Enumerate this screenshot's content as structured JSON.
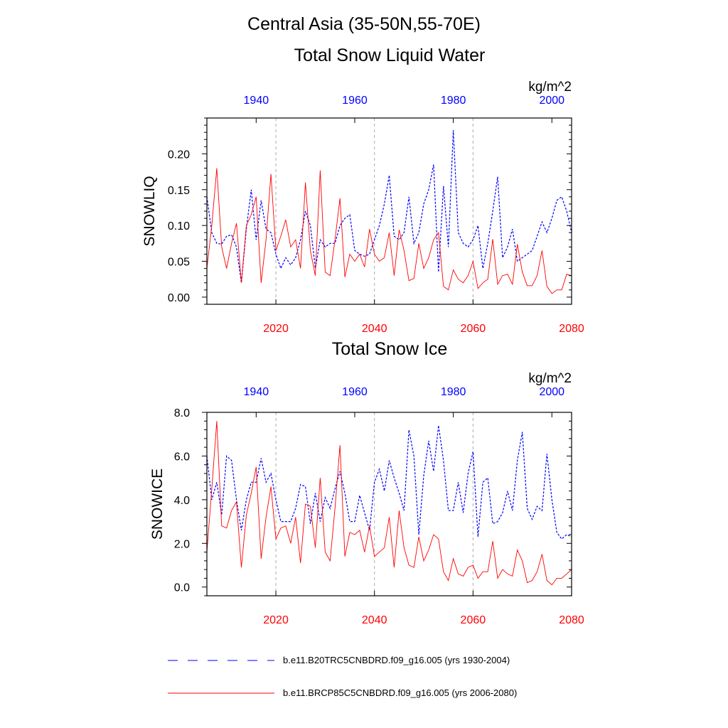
{
  "figure": {
    "title": "Central Asia (35-50N,55-70E)",
    "colors": {
      "historical": "#0000ff",
      "future": "#ff0000",
      "grid": "#aaaaaa",
      "axis": "#000000"
    }
  },
  "chart_data": [
    {
      "type": "line",
      "title": "Total Snow Liquid Water",
      "units": "kg/m^2",
      "ylabel": "SNOWLIQ",
      "ylim": [
        -0.01,
        0.25
      ],
      "yticks": [
        0.0,
        0.05,
        0.1,
        0.15,
        0.2
      ],
      "ytick_labels": [
        "0.00",
        "0.05",
        "0.10",
        "0.15",
        "0.20"
      ],
      "bottom_axis": {
        "range": [
          2006,
          2080
        ],
        "ticks": [
          2020,
          2040,
          2060,
          2080
        ],
        "tick_labels": [
          "2020",
          "2040",
          "2060",
          "2080"
        ],
        "color": "#ff0000"
      },
      "top_axis": {
        "range": [
          1930,
          2004
        ],
        "ticks": [
          1940,
          1960,
          1980,
          2000
        ],
        "tick_labels": [
          "1940",
          "1960",
          "1980",
          "2000"
        ],
        "color": "#0000ff"
      },
      "grid": "vertical dashed at 2020, 2040, 2060",
      "series": [
        {
          "name": "b.e11.B20TRC5CNBDRD.f09_g16.005 (yrs 1930-2004)",
          "axis": "top",
          "style": "dashed",
          "color": "#0000ff",
          "x": [
            1930,
            1931,
            1932,
            1933,
            1934,
            1935,
            1936,
            1937,
            1938,
            1939,
            1940,
            1941,
            1942,
            1943,
            1944,
            1945,
            1946,
            1947,
            1948,
            1949,
            1950,
            1951,
            1952,
            1953,
            1954,
            1955,
            1956,
            1957,
            1958,
            1959,
            1960,
            1961,
            1962,
            1963,
            1964,
            1965,
            1966,
            1967,
            1968,
            1969,
            1970,
            1971,
            1972,
            1973,
            1974,
            1975,
            1976,
            1977,
            1978,
            1979,
            1980,
            1981,
            1982,
            1983,
            1984,
            1985,
            1986,
            1987,
            1988,
            1989,
            1990,
            1991,
            1992,
            1993,
            1994,
            1995,
            1996,
            1997,
            1998,
            1999,
            2000,
            2001,
            2002,
            2003,
            2004
          ],
          "values": [
            0.14,
            0.09,
            0.075,
            0.074,
            0.085,
            0.087,
            0.07,
            0.02,
            0.095,
            0.15,
            0.08,
            0.135,
            0.095,
            0.09,
            0.06,
            0.04,
            0.055,
            0.045,
            0.055,
            0.08,
            0.12,
            0.1,
            0.04,
            0.08,
            0.07,
            0.075,
            0.075,
            0.1,
            0.11,
            0.115,
            0.065,
            0.06,
            0.057,
            0.06,
            0.08,
            0.1,
            0.13,
            0.17,
            0.085,
            0.08,
            0.09,
            0.14,
            0.075,
            0.09,
            0.13,
            0.15,
            0.185,
            0.035,
            0.155,
            0.07,
            0.233,
            0.09,
            0.075,
            0.07,
            0.08,
            0.1,
            0.04,
            0.075,
            0.12,
            0.168,
            0.055,
            0.07,
            0.095,
            0.05,
            0.055,
            0.06,
            0.065,
            0.085,
            0.105,
            0.09,
            0.11,
            0.135,
            0.14,
            0.12,
            0.09
          ]
        },
        {
          "name": "b.e11.BRCP85C5CNBDRD.f09_g16.005 (yrs 2006-2080)",
          "axis": "bottom",
          "style": "solid",
          "color": "#ff0000",
          "x": [
            2006,
            2007,
            2008,
            2009,
            2010,
            2011,
            2012,
            2013,
            2014,
            2015,
            2016,
            2017,
            2018,
            2019,
            2020,
            2021,
            2022,
            2023,
            2024,
            2025,
            2026,
            2027,
            2028,
            2029,
            2030,
            2031,
            2032,
            2033,
            2034,
            2035,
            2036,
            2037,
            2038,
            2039,
            2040,
            2041,
            2042,
            2043,
            2044,
            2045,
            2046,
            2047,
            2048,
            2049,
            2050,
            2051,
            2052,
            2053,
            2054,
            2055,
            2056,
            2057,
            2058,
            2059,
            2060,
            2061,
            2062,
            2063,
            2064,
            2065,
            2066,
            2067,
            2068,
            2069,
            2070,
            2071,
            2072,
            2073,
            2074,
            2075,
            2076,
            2077,
            2078,
            2079,
            2080
          ],
          "values": [
            0.04,
            0.1,
            0.18,
            0.07,
            0.04,
            0.075,
            0.103,
            0.02,
            0.1,
            0.115,
            0.14,
            0.02,
            0.08,
            0.172,
            0.065,
            0.085,
            0.108,
            0.07,
            0.08,
            0.04,
            0.16,
            0.065,
            0.03,
            0.177,
            0.035,
            0.03,
            0.08,
            0.138,
            0.028,
            0.06,
            0.05,
            0.06,
            0.042,
            0.095,
            0.06,
            0.05,
            0.055,
            0.09,
            0.03,
            0.094,
            0.065,
            0.023,
            0.026,
            0.075,
            0.04,
            0.055,
            0.08,
            0.09,
            0.015,
            0.01,
            0.038,
            0.025,
            0.02,
            0.03,
            0.05,
            0.012,
            0.02,
            0.025,
            0.081,
            0.018,
            0.03,
            0.032,
            0.018,
            0.074,
            0.035,
            0.016,
            0.016,
            0.03,
            0.065,
            0.015,
            0.005,
            0.01,
            0.01,
            0.032,
            0.03
          ]
        }
      ]
    },
    {
      "type": "line",
      "title": "Total Snow Ice",
      "units": "kg/m^2",
      "ylabel": "SNOWICE",
      "ylim": [
        -0.4,
        8.0
      ],
      "yticks": [
        0,
        2,
        4,
        6,
        8
      ],
      "ytick_labels": [
        "0.0",
        "2.0",
        "4.0",
        "6.0",
        "8.0"
      ],
      "bottom_axis": {
        "range": [
          2006,
          2080
        ],
        "ticks": [
          2020,
          2040,
          2060,
          2080
        ],
        "tick_labels": [
          "2020",
          "2040",
          "2060",
          "2080"
        ],
        "color": "#ff0000"
      },
      "top_axis": {
        "range": [
          1930,
          2004
        ],
        "ticks": [
          1940,
          1960,
          1980,
          2000
        ],
        "tick_labels": [
          "1940",
          "1960",
          "1980",
          "2000"
        ],
        "color": "#0000ff"
      },
      "grid": "vertical dashed at 2020, 2040, 2060",
      "series": [
        {
          "name": "b.e11.B20TRC5CNBDRD.f09_g16.005 (yrs 1930-2004)",
          "axis": "top",
          "style": "dashed",
          "color": "#0000ff",
          "x": [
            1930,
            1931,
            1932,
            1933,
            1934,
            1935,
            1936,
            1937,
            1938,
            1939,
            1940,
            1941,
            1942,
            1943,
            1944,
            1945,
            1946,
            1947,
            1948,
            1949,
            1950,
            1951,
            1952,
            1953,
            1954,
            1955,
            1956,
            1957,
            1958,
            1959,
            1960,
            1961,
            1962,
            1963,
            1964,
            1965,
            1966,
            1967,
            1968,
            1969,
            1970,
            1971,
            1972,
            1973,
            1974,
            1975,
            1976,
            1977,
            1978,
            1979,
            1980,
            1981,
            1982,
            1983,
            1984,
            1985,
            1986,
            1987,
            1988,
            1989,
            1990,
            1991,
            1992,
            1993,
            1994,
            1995,
            1996,
            1997,
            1998,
            1999,
            2000,
            2001,
            2002,
            2003,
            2004
          ],
          "values": [
            6.0,
            4.0,
            4.8,
            3.3,
            6.0,
            5.8,
            4.0,
            2.6,
            4.0,
            4.8,
            4.8,
            5.9,
            4.8,
            5.2,
            4.0,
            3.0,
            3.0,
            3.0,
            3.6,
            4.7,
            4.6,
            2.9,
            4.3,
            3.0,
            4.1,
            3.6,
            4.5,
            5.3,
            4.3,
            3.0,
            3.0,
            4.2,
            3.4,
            2.6,
            4.8,
            5.4,
            4.4,
            5.8,
            5.0,
            4.3,
            3.5,
            7.2,
            6.0,
            2.4,
            5.1,
            6.7,
            5.3,
            7.4,
            5.8,
            3.5,
            3.5,
            4.8,
            3.4,
            5.2,
            6.2,
            2.3,
            4.8,
            5.0,
            2.9,
            3.0,
            3.4,
            4.4,
            3.5,
            5.8,
            7.1,
            3.6,
            3.1,
            3.7,
            3.5,
            6.1,
            4.0,
            2.5,
            2.2,
            2.4,
            2.3
          ]
        },
        {
          "name": "b.e11.BRCP85C5CNBDRD.f09_g16.005 (yrs 2006-2080)",
          "axis": "bottom",
          "style": "solid",
          "color": "#ff0000",
          "x": [
            2006,
            2007,
            2008,
            2009,
            2010,
            2011,
            2012,
            2013,
            2014,
            2015,
            2016,
            2017,
            2018,
            2019,
            2020,
            2021,
            2022,
            2023,
            2024,
            2025,
            2026,
            2027,
            2028,
            2029,
            2030,
            2031,
            2032,
            2033,
            2034,
            2035,
            2036,
            2037,
            2038,
            2039,
            2040,
            2041,
            2042,
            2043,
            2044,
            2045,
            2046,
            2047,
            2048,
            2049,
            2050,
            2051,
            2052,
            2053,
            2054,
            2055,
            2056,
            2057,
            2058,
            2059,
            2060,
            2061,
            2062,
            2063,
            2064,
            2065,
            2066,
            2067,
            2068,
            2069,
            2070,
            2071,
            2072,
            2073,
            2074,
            2075,
            2076,
            2077,
            2078,
            2079,
            2080
          ],
          "values": [
            1.6,
            4.5,
            7.6,
            2.8,
            2.7,
            3.5,
            3.9,
            0.9,
            3.3,
            4.3,
            5.5,
            1.3,
            3.2,
            4.6,
            2.2,
            2.7,
            2.8,
            2.0,
            3.2,
            1.1,
            3.8,
            3.7,
            1.8,
            5.0,
            1.6,
            1.2,
            3.6,
            6.5,
            1.4,
            2.5,
            2.4,
            2.6,
            1.6,
            2.8,
            1.4,
            1.6,
            1.8,
            3.2,
            0.9,
            3.5,
            1.8,
            1.0,
            0.9,
            2.3,
            1.2,
            1.7,
            2.4,
            2.2,
            0.7,
            0.3,
            1.3,
            0.6,
            0.5,
            0.9,
            1.0,
            0.4,
            0.7,
            0.7,
            2.1,
            0.4,
            0.8,
            0.6,
            0.5,
            1.7,
            1.2,
            0.2,
            0.3,
            0.7,
            1.5,
            0.3,
            0.1,
            0.4,
            0.4,
            0.6,
            0.8
          ]
        }
      ]
    }
  ],
  "legend": {
    "placement": "bottom",
    "entries": [
      {
        "label": "b.e11.B20TRC5CNBDRD.f09_g16.005 (yrs 1930-2004)",
        "style": "dashed",
        "color": "#0000ff"
      },
      {
        "label": "b.e11.BRCP85C5CNBDRD.f09_g16.005 (yrs 2006-2080)",
        "style": "solid",
        "color": "#ff0000"
      }
    ]
  }
}
